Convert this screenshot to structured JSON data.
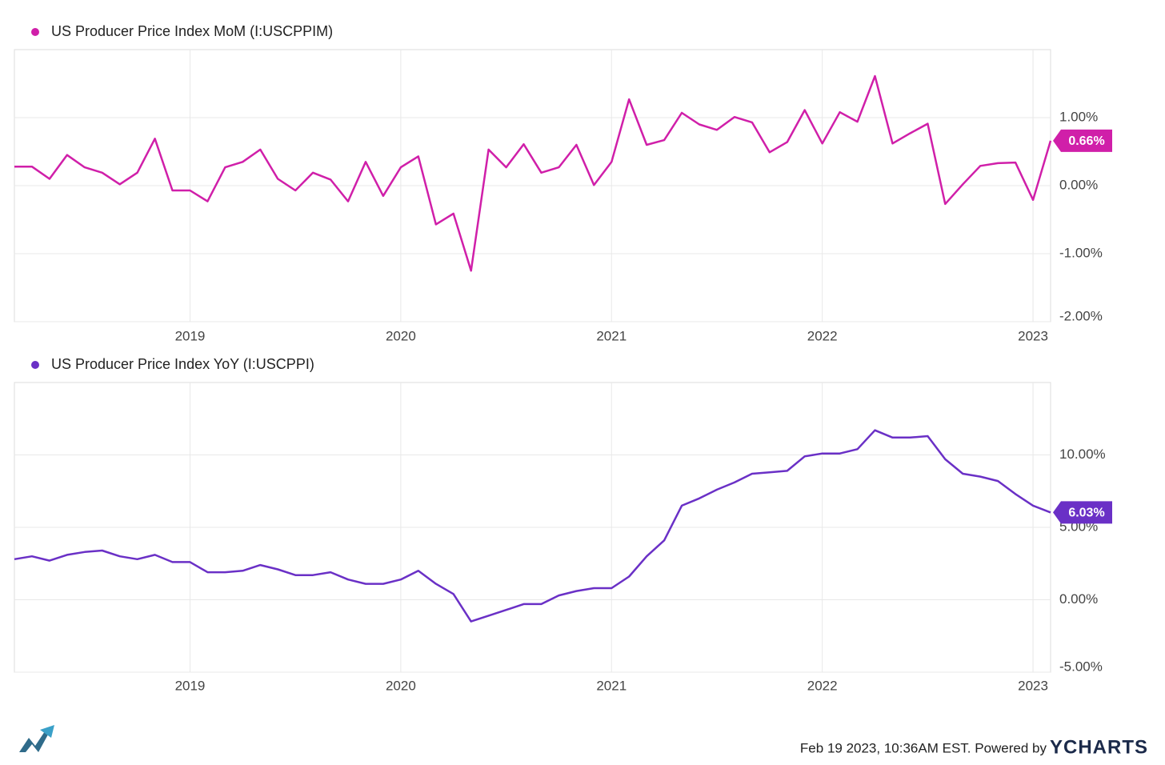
{
  "chart_data": [
    {
      "type": "line",
      "x": [
        "2018-02",
        "2018-03",
        "2018-04",
        "2018-05",
        "2018-06",
        "2018-07",
        "2018-08",
        "2018-09",
        "2018-10",
        "2018-11",
        "2018-12",
        "2019-01",
        "2019-02",
        "2019-03",
        "2019-04",
        "2019-05",
        "2019-06",
        "2019-07",
        "2019-08",
        "2019-09",
        "2019-10",
        "2019-11",
        "2019-12",
        "2020-01",
        "2020-02",
        "2020-03",
        "2020-04",
        "2020-05",
        "2020-06",
        "2020-07",
        "2020-08",
        "2020-09",
        "2020-10",
        "2020-11",
        "2020-12",
        "2021-01",
        "2021-02",
        "2021-03",
        "2021-04",
        "2021-05",
        "2021-06",
        "2021-07",
        "2021-08",
        "2021-09",
        "2021-10",
        "2021-11",
        "2021-12",
        "2022-01",
        "2022-02",
        "2022-03",
        "2022-04",
        "2022-05",
        "2022-06",
        "2022-07",
        "2022-08",
        "2022-09",
        "2022-10",
        "2022-11",
        "2022-12",
        "2023-01"
      ],
      "series": [
        {
          "name": "US Producer Price Index MoM (I:USCPPIM)",
          "color": "#d01fa9",
          "values": [
            0.28,
            0.28,
            0.1,
            0.45,
            0.27,
            0.19,
            0.02,
            0.19,
            0.69,
            -0.07,
            -0.07,
            -0.23,
            0.27,
            0.35,
            0.53,
            0.1,
            -0.07,
            0.19,
            0.09,
            -0.23,
            0.35,
            -0.15,
            0.27,
            0.43,
            -0.57,
            -0.41,
            -1.25,
            0.53,
            0.27,
            0.61,
            0.19,
            0.27,
            0.6,
            0.01,
            0.35,
            1.27,
            0.6,
            0.67,
            1.07,
            0.9,
            0.82,
            1.01,
            0.93,
            0.49,
            0.64,
            1.11,
            0.62,
            1.08,
            0.94,
            1.61,
            0.62,
            0.77,
            0.91,
            -0.27,
            0.02,
            0.29,
            0.33,
            0.34,
            -0.21,
            0.66
          ],
          "value_labels": [
            null,
            null,
            null,
            null,
            null,
            null,
            null,
            null,
            null,
            null,
            null,
            null,
            null,
            null,
            null,
            null,
            null,
            null,
            null,
            null,
            null,
            null,
            null,
            null,
            null,
            null,
            null,
            null,
            null,
            null,
            null,
            null,
            null,
            null,
            null,
            null,
            null,
            null,
            null,
            null,
            null,
            null,
            null,
            null,
            null,
            null,
            null,
            null,
            null,
            null,
            null,
            null,
            null,
            null,
            null,
            null,
            null,
            null,
            null,
            "0.66%"
          ]
        }
      ],
      "xlim": [
        "2018-02",
        "2023-01"
      ],
      "xticks": [
        2019,
        2020,
        2021,
        2022,
        2023
      ],
      "ylim": [
        -2,
        2
      ],
      "yticks": [
        {
          "value": -2,
          "label": "-2.00%"
        },
        {
          "value": -1,
          "label": "-1.00%"
        },
        {
          "value": 0,
          "label": "0.00%"
        },
        {
          "value": 1,
          "label": "1.00%"
        }
      ],
      "grid": true,
      "legend": "top-left"
    },
    {
      "type": "line",
      "x": [
        "2018-02",
        "2018-03",
        "2018-04",
        "2018-05",
        "2018-06",
        "2018-07",
        "2018-08",
        "2018-09",
        "2018-10",
        "2018-11",
        "2018-12",
        "2019-01",
        "2019-02",
        "2019-03",
        "2019-04",
        "2019-05",
        "2019-06",
        "2019-07",
        "2019-08",
        "2019-09",
        "2019-10",
        "2019-11",
        "2019-12",
        "2020-01",
        "2020-02",
        "2020-03",
        "2020-04",
        "2020-05",
        "2020-06",
        "2020-07",
        "2020-08",
        "2020-09",
        "2020-10",
        "2020-11",
        "2020-12",
        "2021-01",
        "2021-02",
        "2021-03",
        "2021-04",
        "2021-05",
        "2021-06",
        "2021-07",
        "2021-08",
        "2021-09",
        "2021-10",
        "2021-11",
        "2021-12",
        "2022-01",
        "2022-02",
        "2022-03",
        "2022-04",
        "2022-05",
        "2022-06",
        "2022-07",
        "2022-08",
        "2022-09",
        "2022-10",
        "2022-11",
        "2022-12",
        "2023-01"
      ],
      "series": [
        {
          "name": "US Producer Price Index YoY (I:USCPPI)",
          "color": "#6a30c6",
          "values": [
            2.8,
            3.0,
            2.7,
            3.1,
            3.3,
            3.4,
            3.0,
            2.8,
            3.1,
            2.6,
            2.6,
            1.9,
            1.9,
            2.0,
            2.4,
            2.1,
            1.7,
            1.7,
            1.9,
            1.4,
            1.1,
            1.1,
            1.4,
            2.0,
            1.1,
            0.4,
            -1.5,
            -1.1,
            -0.7,
            -0.3,
            -0.3,
            0.3,
            0.6,
            0.8,
            0.8,
            1.6,
            3.0,
            4.1,
            6.5,
            7.0,
            7.6,
            8.1,
            8.7,
            8.8,
            8.9,
            9.9,
            10.1,
            10.1,
            10.4,
            11.7,
            11.2,
            11.2,
            11.3,
            9.7,
            8.7,
            8.5,
            8.2,
            7.3,
            6.5,
            6.03
          ],
          "value_labels": [
            null,
            null,
            null,
            null,
            null,
            null,
            null,
            null,
            null,
            null,
            null,
            null,
            null,
            null,
            null,
            null,
            null,
            null,
            null,
            null,
            null,
            null,
            null,
            null,
            null,
            null,
            null,
            null,
            null,
            null,
            null,
            null,
            null,
            null,
            null,
            null,
            null,
            null,
            null,
            null,
            null,
            null,
            null,
            null,
            null,
            null,
            null,
            null,
            null,
            null,
            null,
            null,
            null,
            null,
            null,
            null,
            null,
            null,
            null,
            "6.03%"
          ]
        }
      ],
      "xlim": [
        "2018-02",
        "2023-01"
      ],
      "xticks": [
        2019,
        2020,
        2021,
        2022,
        2023
      ],
      "ylim": [
        -5,
        15
      ],
      "yticks": [
        {
          "value": -5,
          "label": "-5.00%"
        },
        {
          "value": 0,
          "label": "0.00%"
        },
        {
          "value": 5,
          "label": "5.00%"
        },
        {
          "value": 10,
          "label": "10.00%"
        }
      ],
      "grid": true,
      "legend": "top-left"
    }
  ],
  "footer": {
    "timestamp": "Feb 19 2023, 10:36AM EST. Powered by",
    "brand": "YCHARTS"
  }
}
